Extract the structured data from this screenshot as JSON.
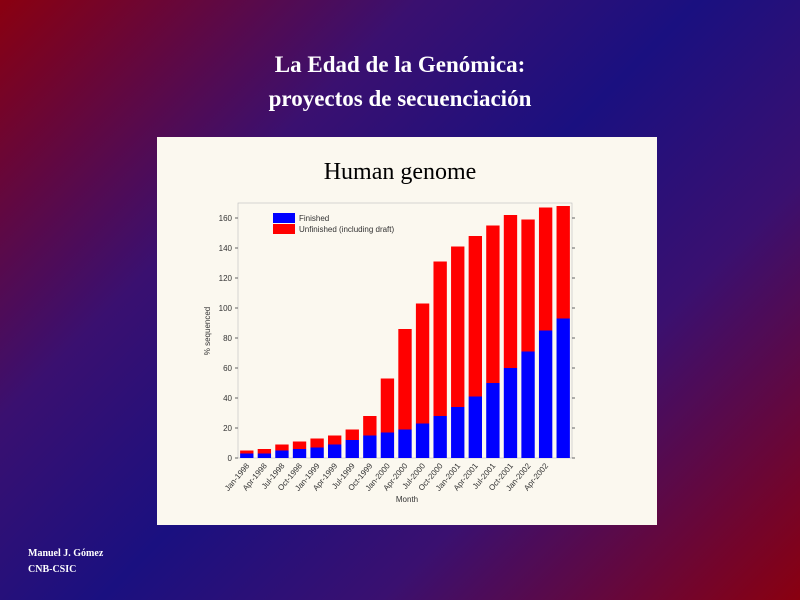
{
  "slide": {
    "title": [
      "La Edad de la Genómica:",
      "proyectos de secuenciación"
    ],
    "footer": [
      "Manuel J. Gómez",
      "CNB-CSIC"
    ]
  },
  "chart_data": {
    "type": "bar",
    "stacked": true,
    "title": "Human genome",
    "x_label": "Month",
    "y_label": "% sequenced",
    "categories": [
      "Jan-1998",
      "Apr-1998",
      "Jul-1998",
      "Oct-1998",
      "Jan-1999",
      "Apr-1999",
      "Jul-1999",
      "Oct-1999",
      "Jan-2000",
      "Apr-2000",
      "Jul-2000",
      "Oct-2000",
      "Jan-2001",
      "Apr-2001",
      "Jul-2001",
      "Oct-2001",
      "Jan-2002",
      "Apr-2002",
      null
    ],
    "series": [
      {
        "name": "Finished",
        "color": "#0000ff",
        "values": [
          3,
          3,
          5,
          6,
          7,
          9,
          12,
          15,
          17,
          19,
          23,
          28,
          34,
          41,
          50,
          60,
          71,
          85,
          93
        ]
      },
      {
        "name": "Unfinished (including draft)",
        "color": "#ff0000",
        "values": [
          2,
          3,
          4,
          5,
          6,
          6,
          7,
          13,
          36,
          67,
          80,
          103,
          107,
          107,
          105,
          102,
          88,
          82,
          75
        ]
      }
    ],
    "ylim": [
      0,
      170
    ],
    "yticks": [
      0,
      20,
      40,
      60,
      80,
      100,
      120,
      140,
      160
    ],
    "legend": "top-left"
  }
}
